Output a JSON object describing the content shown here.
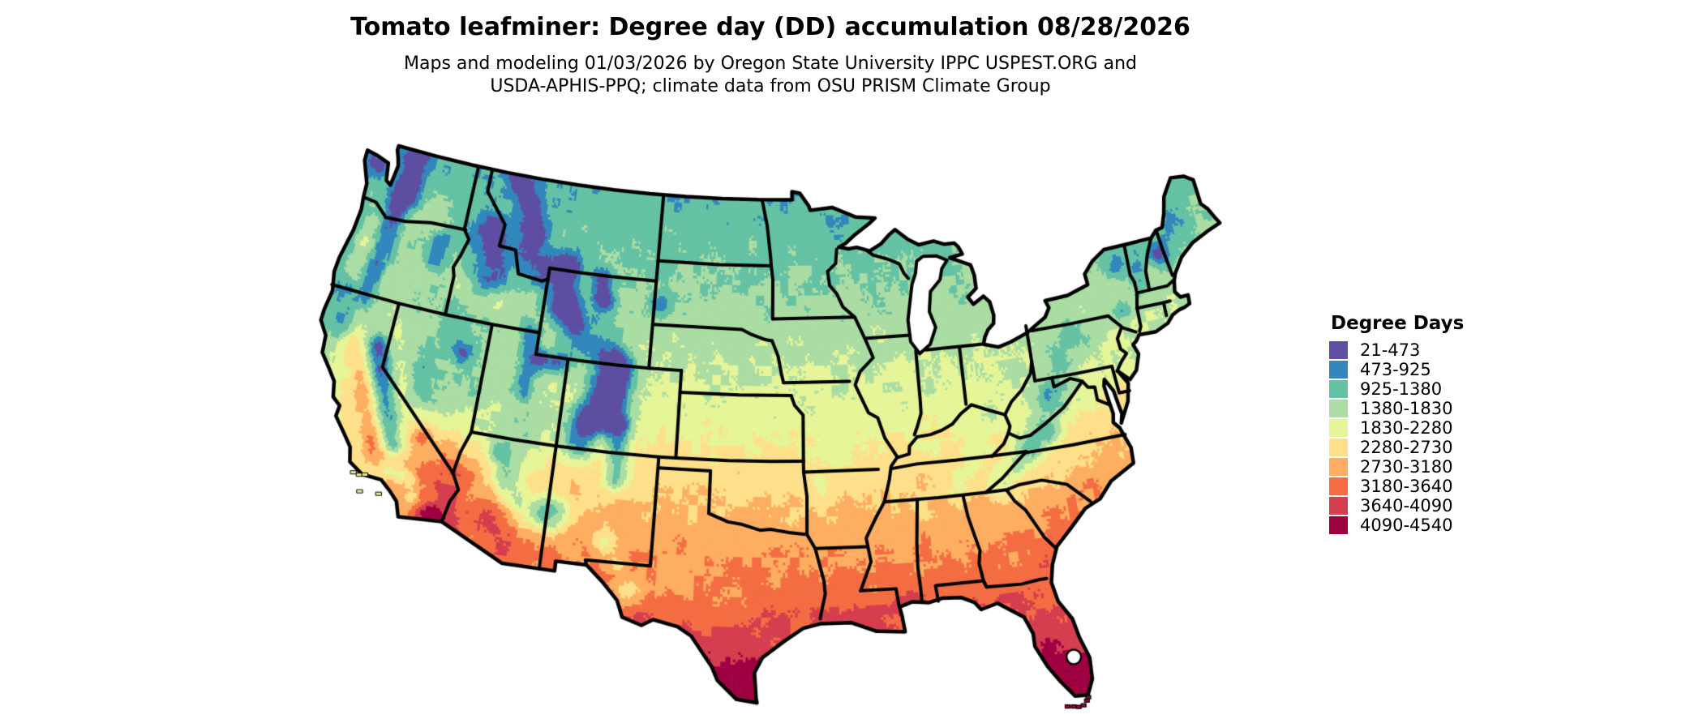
{
  "header": {
    "title": "Tomato leafminer: Degree day (DD) accumulation 08/28/2026",
    "subtitle_line1": "Maps and modeling 01/03/2026 by Oregon State University IPPC USPEST.ORG and",
    "subtitle_line2": "USDA-APHIS-PPQ; climate data from OSU PRISM Climate Group"
  },
  "legend": {
    "title": "Degree Days",
    "items": [
      {
        "range": "21-473",
        "color": "#5e4fa2"
      },
      {
        "range": "473-925",
        "color": "#3288bd"
      },
      {
        "range": "925-1380",
        "color": "#66c2a5"
      },
      {
        "range": "1380-1830",
        "color": "#abdda4"
      },
      {
        "range": "1830-2280",
        "color": "#e6f598"
      },
      {
        "range": "2280-2730",
        "color": "#fee08b"
      },
      {
        "range": "2730-3180",
        "color": "#fdae61"
      },
      {
        "range": "3180-3640",
        "color": "#f46d43"
      },
      {
        "range": "3640-4090",
        "color": "#d53e4f"
      },
      {
        "range": "4090-4540",
        "color": "#9e0142"
      }
    ]
  },
  "chart_data": {
    "type": "heatmap",
    "title": "Tomato leafminer degree day (DD) accumulation through 08/28/2026, contiguous United States",
    "legend_title": "Degree Days",
    "bins": [
      [
        21,
        473
      ],
      [
        473,
        925
      ],
      [
        925,
        1380
      ],
      [
        1380,
        1830
      ],
      [
        1830,
        2280
      ],
      [
        2280,
        2730
      ],
      [
        2730,
        3180
      ],
      [
        3180,
        3640
      ],
      [
        3640,
        4090
      ],
      [
        4090,
        4540
      ]
    ],
    "bin_colors": [
      "#5e4fa2",
      "#3288bd",
      "#66c2a5",
      "#abdda4",
      "#e6f598",
      "#fee08b",
      "#fdae61",
      "#f46d43",
      "#d53e4f",
      "#9e0142"
    ],
    "palette": "Spectral (reversed), 10 classes",
    "date_shown": "08/28/2026",
    "model_run_date": "01/03/2026",
    "geography": "Contiguous United States raster map with black state boundaries; Great Lakes and ocean shown white",
    "regional_pattern": [
      "Northern tier (WA, MT, ND, MN, WI, MI, ME, northern New England, NY) mostly 925-1380 (teal)",
      "High mountains (Cascades, Sierra Nevada, northern & central Rockies, Yellowstone, Colorado ranges) 21-925 (purple/blue)",
      "Central plains and mid-Atlantic (NE, IA, KS, MO, OH valley, KY, VA) 1380-2730 (green to pale yellow)",
      "Southern plains and Southeast (OK, AR, TN, NC, GA, AL, MS) 2280-3640 (yellow to orange)",
      "Texas, Gulf Coast, northern Florida 3180-3640 (deep orange)",
      "South Texas, central/south Florida, desert Southwest (Yuma/Phoenix/Imperial Valley) 3640-4540 (red to maroon)",
      "Florida Keys and far south Florida tip 4090-4540 (maroon)"
    ]
  }
}
